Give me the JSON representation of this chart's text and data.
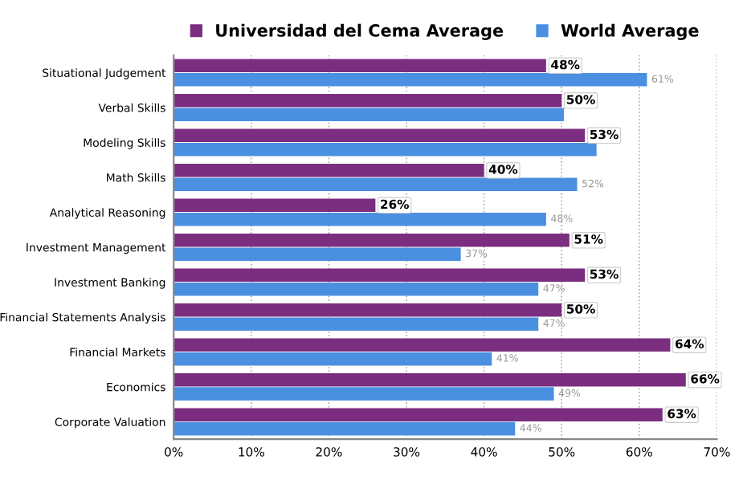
{
  "chart_data": {
    "type": "bar",
    "orientation": "horizontal",
    "categories": [
      "Situational Judgement",
      "Verbal Skills",
      "Modeling Skills",
      "Math Skills",
      "Analytical Reasoning",
      "Investment Management",
      "Investment Banking",
      "Financial Statements Analysis",
      "Financial Markets",
      "Economics",
      "Corporate Valuation"
    ],
    "series": [
      {
        "name": "Universidad del Cema Average",
        "color": "#7b2d80",
        "values": [
          48,
          50,
          53,
          40,
          26,
          51,
          53,
          50,
          64,
          66,
          63
        ],
        "value_labels": [
          "48%",
          "50%",
          "53%",
          "40%",
          "26%",
          "51%",
          "53%",
          "50%",
          "64%",
          "66%",
          "63%"
        ]
      },
      {
        "name": "World Average",
        "color": "#4a8fe0",
        "values": [
          61,
          50.3,
          54.5,
          52,
          48,
          37,
          47,
          47,
          41,
          49,
          44
        ],
        "value_labels": [
          "61%",
          null,
          null,
          "52%",
          "48%",
          "37%",
          "47%",
          "47%",
          "41%",
          "49%",
          "44%"
        ]
      }
    ],
    "xlim": [
      0,
      70
    ],
    "xticks": [
      {
        "value": 0,
        "label": "0%"
      },
      {
        "value": 10,
        "label": "10%"
      },
      {
        "value": 20,
        "label": "20%"
      },
      {
        "value": 30,
        "label": "30%"
      },
      {
        "value": 40,
        "label": "40%"
      },
      {
        "value": 50,
        "label": "50%"
      },
      {
        "value": 60,
        "label": "60%"
      },
      {
        "value": 70,
        "label": "70%"
      }
    ],
    "grid": "x",
    "legend": "top"
  }
}
